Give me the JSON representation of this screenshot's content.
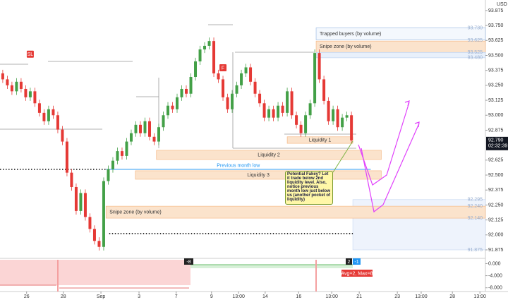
{
  "chart_data": {
    "type": "candlestick",
    "currency": "USD",
    "open": [
      93.35,
      93.3,
      93.25,
      93.2,
      93.28,
      93.22,
      93.15,
      93.2,
      93.1,
      93.02,
      92.95,
      93.05,
      93.0,
      92.88,
      92.78,
      92.52,
      92.4,
      92.2,
      92.35,
      92.15,
      92.05,
      91.95,
      91.9,
      92.45,
      92.55,
      92.62,
      92.7,
      92.66,
      92.78,
      92.85,
      92.92,
      92.85,
      92.95,
      92.82,
      92.78,
      92.9,
      93.0,
      93.08,
      93.05,
      93.15,
      93.22,
      93.18,
      93.32,
      93.45,
      93.55,
      93.58,
      93.62,
      93.35,
      93.3,
      93.15,
      93.05,
      93.18,
      93.25,
      93.35,
      93.4,
      93.28,
      93.18,
      93.1,
      92.98,
      93.05,
      92.98,
      93.08,
      93.02,
      93.2,
      93.0,
      92.92,
      92.85,
      93.0,
      93.1,
      93.52,
      93.3,
      93.12,
      92.95,
      93.05,
      92.9,
      92.98,
      93.0
    ],
    "high": [
      93.38,
      93.33,
      93.28,
      93.31,
      93.31,
      93.25,
      93.23,
      93.23,
      93.13,
      93.05,
      93.08,
      93.08,
      93.03,
      92.91,
      92.81,
      92.55,
      92.43,
      92.38,
      92.38,
      92.18,
      92.08,
      91.98,
      92.48,
      92.58,
      92.65,
      92.73,
      92.73,
      92.81,
      92.88,
      92.95,
      92.95,
      92.98,
      92.98,
      92.85,
      92.93,
      93.03,
      93.11,
      93.11,
      93.18,
      93.25,
      93.25,
      93.35,
      93.48,
      93.58,
      93.61,
      93.65,
      93.65,
      93.38,
      93.33,
      93.18,
      93.21,
      93.28,
      93.38,
      93.43,
      93.43,
      93.31,
      93.21,
      93.13,
      93.08,
      93.08,
      93.11,
      93.11,
      93.23,
      93.23,
      93.03,
      92.95,
      93.03,
      93.13,
      93.55,
      93.55,
      93.33,
      93.15,
      93.08,
      93.08,
      93.01,
      93.03,
      93.03
    ],
    "low": [
      93.27,
      93.22,
      93.17,
      93.17,
      93.19,
      93.12,
      93.12,
      93.07,
      92.99,
      92.92,
      92.92,
      92.97,
      92.85,
      92.75,
      92.49,
      92.37,
      92.17,
      92.17,
      92.12,
      92.02,
      91.92,
      91.87,
      91.87,
      92.42,
      92.52,
      92.59,
      92.63,
      92.63,
      92.75,
      92.82,
      92.82,
      92.82,
      92.79,
      92.75,
      92.75,
      92.87,
      92.97,
      93.02,
      93.02,
      93.12,
      93.15,
      93.15,
      93.29,
      93.42,
      93.52,
      93.55,
      93.32,
      93.27,
      93.12,
      93.02,
      93.02,
      93.15,
      93.22,
      93.32,
      93.25,
      93.15,
      93.07,
      92.95,
      92.95,
      92.95,
      92.95,
      92.99,
      92.99,
      92.97,
      92.89,
      92.82,
      92.82,
      92.97,
      93.07,
      93.27,
      93.09,
      92.92,
      92.92,
      92.87,
      92.87,
      92.95,
      92.76
    ],
    "close": [
      93.3,
      93.25,
      93.2,
      93.28,
      93.22,
      93.15,
      93.2,
      93.1,
      93.02,
      92.95,
      93.05,
      93.0,
      92.88,
      92.78,
      92.52,
      92.4,
      92.2,
      92.35,
      92.15,
      92.05,
      91.95,
      91.9,
      92.45,
      92.55,
      92.62,
      92.7,
      92.66,
      92.78,
      92.85,
      92.92,
      92.85,
      92.95,
      92.82,
      92.78,
      92.9,
      93.0,
      93.08,
      93.05,
      93.15,
      93.22,
      93.18,
      93.32,
      93.45,
      93.55,
      93.58,
      93.62,
      93.35,
      93.3,
      93.15,
      93.05,
      93.18,
      93.25,
      93.35,
      93.4,
      93.28,
      93.18,
      93.1,
      92.98,
      93.05,
      92.98,
      93.08,
      93.02,
      93.2,
      93.0,
      92.92,
      92.85,
      93.0,
      93.1,
      93.52,
      93.3,
      93.12,
      92.95,
      93.05,
      92.9,
      92.98,
      93.0,
      92.79
    ],
    "up_color": "#43a047",
    "down_color": "#e53935",
    "xlim": [
      -0.6,
      105.2
    ],
    "xticks": [
      {
        "value": 5.2,
        "label": "26"
      },
      {
        "value": 13.2,
        "label": "28"
      },
      {
        "value": 21.4,
        "label": "Sep"
      },
      {
        "value": 29.7,
        "label": "3"
      },
      {
        "value": 37.8,
        "label": "7"
      },
      {
        "value": 45.5,
        "label": "9"
      },
      {
        "value": 51.4,
        "label": "13:00"
      },
      {
        "value": 57.2,
        "label": "14"
      },
      {
        "value": 64.5,
        "label": "16"
      },
      {
        "value": 71.7,
        "label": "13:00"
      },
      {
        "value": 77.7,
        "label": "21"
      },
      {
        "value": 86,
        "label": "23"
      },
      {
        "value": 91.2,
        "label": "13:00"
      },
      {
        "value": 98,
        "label": "28"
      },
      {
        "value": 104,
        "label": "13:00"
      }
    ],
    "ylim": [
      91.81,
      93.963
    ],
    "yticks": [
      {
        "value": 93.875,
        "label": "93.875"
      },
      {
        "value": 93.75,
        "label": "93.750"
      },
      {
        "value": 93.625,
        "label": "93.625"
      },
      {
        "value": 93.5,
        "label": "93.500"
      },
      {
        "value": 93.375,
        "label": "93.375"
      },
      {
        "value": 93.25,
        "label": "93.250"
      },
      {
        "value": 93.125,
        "label": "93.125"
      },
      {
        "value": 93,
        "label": "93.000"
      },
      {
        "value": 92.875,
        "label": "92.875"
      },
      {
        "value": 92.625,
        "label": "92.625"
      },
      {
        "value": 92.5,
        "label": "92.500"
      },
      {
        "value": 92.375,
        "label": "92.375"
      },
      {
        "value": 92.25,
        "label": "92.250"
      },
      {
        "value": 92.125,
        "label": "92.125"
      },
      {
        "value": 92,
        "label": "92.000"
      },
      {
        "value": 91.875,
        "label": "91.875"
      }
    ],
    "last_price": {
      "value": 92.79,
      "label": "92.790"
    },
    "countdown": "02:32:39",
    "zones": [
      {
        "label": "Trapped buyers (by volume)",
        "top": 93.73,
        "bottom": 93.63,
        "x0": 68.3,
        "x1": 105.2,
        "fill": "#f4f8fd",
        "border": "#90b4e0"
      },
      {
        "label": "Snipe zone (by volume)",
        "top": 93.62,
        "bottom": 93.525,
        "x0": 68.3,
        "x1": 105.2,
        "fill": "#fbe3cc",
        "border": "#f5b27a"
      },
      {
        "top": 93.525,
        "bottom": 93.48,
        "x0": 68.3,
        "x1": 105.2,
        "fill": "#e8f0fb",
        "border": "#b7cdee"
      },
      {
        "label": "Liquidity 1",
        "top": 92.82,
        "bottom": 92.765,
        "x0": 62,
        "x1": 76.3,
        "fill": "#fbe3cc",
        "border": "#f5b27a"
      },
      {
        "label": "Liquidity 2",
        "top": 92.707,
        "bottom": 92.63,
        "x0": 33.5,
        "x1": 82.5,
        "fill": "#fbe3cc",
        "border": "#f5b27a"
      },
      {
        "label": "Liquidity 3",
        "top": 92.536,
        "bottom": 92.465,
        "x0": 28.9,
        "x1": 82.5,
        "fill": "#fbe3cc",
        "border": "#f5b27a"
      },
      {
        "top": 92.295,
        "bottom": 91.875,
        "x0": 76.3,
        "x1": 105.2,
        "fill": "#eef3fc",
        "border": "#c5d6f0"
      },
      {
        "label": "Snipe zone (by volume)",
        "top": 92.24,
        "bottom": 92.14,
        "x0": 22.5,
        "x1": 105.2,
        "fill": "#fbe3cc",
        "border": "#f5b27a"
      }
    ],
    "levels": [
      {
        "label": "Previous month low",
        "value": 92.548,
        "x0": 22.5,
        "x1": 80.2,
        "color": "#2196f3",
        "style": "solid"
      },
      {
        "value": 92.548,
        "x0": -0.6,
        "x1": 22.5,
        "color": "#000000",
        "style": "dotted"
      },
      {
        "value": 92.011,
        "x0": 23.2,
        "x1": 76.3,
        "color": "#000000",
        "style": "dotted"
      }
    ],
    "price_marks": [
      {
        "value": 93.73,
        "label": "93.730"
      },
      {
        "value": 93.625,
        "label": "93.625"
      },
      {
        "value": 93.525,
        "label": "93.525"
      },
      {
        "value": 93.48,
        "label": "93.480"
      },
      {
        "value": 92.295,
        "label": "92.295"
      },
      {
        "value": 92.24,
        "label": "92.240"
      },
      {
        "value": 92.14,
        "label": "92.140"
      },
      {
        "value": 91.875,
        "label": "91.875"
      }
    ],
    "markers": [
      {
        "label": "SL",
        "index": 6,
        "price": 93.51
      },
      {
        "label": "F",
        "index": 48,
        "price": 93.397
      }
    ],
    "callout": "Potential Fakey? Let it trade below 2nd liquidity level. Also, notice previous month low just below us (another pocket of liquidity)",
    "indicator": {
      "yticks": [
        {
          "value": 0,
          "label": "0.000"
        },
        {
          "value": -4,
          "label": "-4.000"
        },
        {
          "value": -8,
          "label": "-8.000"
        }
      ],
      "ylim": [
        -9,
        1.5
      ],
      "badges": [
        "-8",
        "2",
        "-1",
        "Avg=2, Max=8"
      ]
    }
  }
}
